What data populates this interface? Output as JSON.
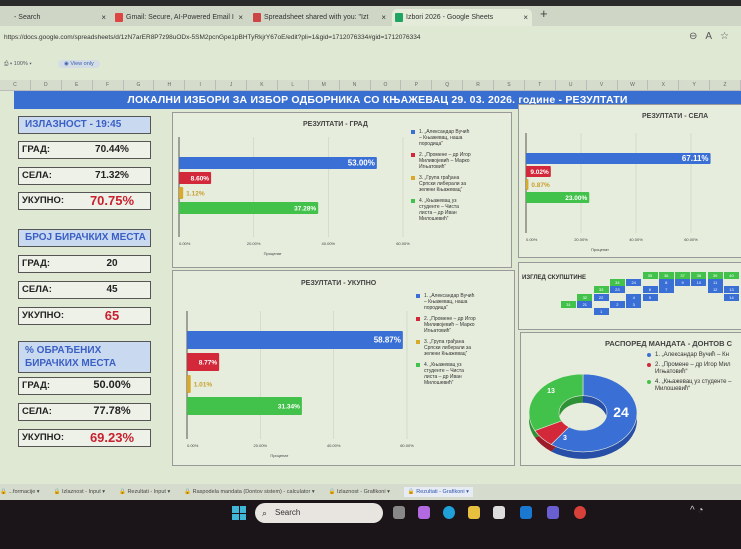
{
  "browser": {
    "tabs": [
      {
        "label": "- Search",
        "active": false
      },
      {
        "label": "Gmail: Secure, AI-Powered Email I",
        "active": false
      },
      {
        "label": "Spreadsheet shared with you: \"Izt",
        "active": false
      },
      {
        "label": "Izbori 2026 - Google Sheets",
        "active": true
      }
    ],
    "close_glyph": "×",
    "new_tab_glyph": "+",
    "url": "https://docs.google.com/spreadsheets/d/1zN7arER8P7z98uODx-5SM2pcnGpe1pBHTyRkjrY67oE/edit?pli=1&gid=1712076334#gid=1712076334",
    "icons": [
      "zoom-icon",
      "read-aloud-icon",
      "favorite-icon"
    ]
  },
  "toolbar": {
    "zoom": "100%",
    "view_only": "View only"
  },
  "columns": [
    "C",
    "D",
    "E",
    "F",
    "G",
    "H",
    "I",
    "J",
    "K",
    "L",
    "M",
    "N",
    "O",
    "P",
    "Q",
    "R",
    "S",
    "T",
    "U",
    "V",
    "W",
    "X",
    "Y",
    "Z"
  ],
  "banner": "ЛОКАЛНИ ИЗБОРИ ЗА ИЗБОР ОДБОРНИКА СО КЊАЖЕВАЦ  29. 03. 2026. године - РЕЗУЛТАТИ",
  "turnout": {
    "header": "ИЗЛАЗНОСТ - 19:45",
    "rows": [
      {
        "label": "ГРАД:",
        "value": "70.44%"
      },
      {
        "label": "СЕЛА:",
        "value": "71.32%"
      },
      {
        "label": "УКУПНО:",
        "value": "70.75%"
      }
    ]
  },
  "polling_stations": {
    "header": "БРОЈ БИРАЧКИХ МЕСТА",
    "rows": [
      {
        "label": "ГРАД:",
        "value": "20"
      },
      {
        "label": "СЕЛА:",
        "value": "45"
      },
      {
        "label": "УКУПНО:",
        "value": "65"
      }
    ]
  },
  "processed": {
    "header_line1": "% ОБРАЂЕНИХ",
    "header_line2": "БИРАЧКИХ МЕСТА",
    "rows": [
      {
        "label": "ГРАД:",
        "value": "50.00%"
      },
      {
        "label": "СЕЛА:",
        "value": "77.78%"
      },
      {
        "label": "УКУПНО:",
        "value": "69.23%"
      }
    ]
  },
  "colors": {
    "blue": "#3a6fd6",
    "red": "#d2283a",
    "yellow": "#d8a92a",
    "green": "#42c24a",
    "total_value": "#c8202e"
  },
  "legend": [
    "1. „Александар Вучић – Књажевац, наша породица“",
    "2. „Промене – др Игор Миливојевић – Марко Игњатовић“",
    "3. „Група грађана Српски либерали за зелени Књажевац“",
    "4. „Књажевац уз студенте – Чиста листа – др Иван Милошевић“"
  ],
  "chart_data": [
    {
      "id": "grad",
      "type": "bar",
      "orientation": "horizontal",
      "title": "РЕЗУЛТАТИ - ГРАД",
      "xlabel": "Проценат",
      "xlim": [
        0,
        60
      ],
      "ticks": [
        "0.00%",
        "20.00%",
        "40.00%",
        "60.00%"
      ],
      "values": [
        53.0,
        8.6,
        1.12,
        37.28
      ],
      "labels": [
        "53.00%",
        "8.60%",
        "1.12%",
        "37.28%"
      ],
      "legend": "right"
    },
    {
      "id": "ukupno",
      "type": "bar",
      "orientation": "horizontal",
      "title": "РЕЗУЛТАТИ - УКУПНО",
      "xlabel": "Проценат",
      "xlim": [
        0,
        60
      ],
      "ticks": [
        "0.00%",
        "20.00%",
        "40.00%",
        "60.00%"
      ],
      "values": [
        58.87,
        8.77,
        1.01,
        31.34
      ],
      "labels": [
        "58.87%",
        "8.77%",
        "1.01%",
        "31.34%"
      ],
      "legend": "right"
    },
    {
      "id": "sela",
      "type": "bar",
      "orientation": "horizontal",
      "title": "РЕЗУЛТАТИ - СЕЛА",
      "xlabel": "Проценат",
      "xlim": [
        0,
        80
      ],
      "ticks": [
        "0.00%",
        "20.00%",
        "40.00%",
        "60.00%"
      ],
      "values": [
        67.11,
        9.02,
        0.87,
        23.0
      ],
      "labels": [
        "67.11%",
        "9.02%",
        "0.87%",
        "23.00%"
      ]
    },
    {
      "id": "mandates",
      "type": "pie",
      "donut": true,
      "title": "РАСПОРЕД МАНДАТА - ДОНТОВ С",
      "values": [
        24,
        3,
        13
      ],
      "labels": [
        "24",
        "3",
        "13"
      ],
      "legend_items": [
        "1. „Александар Вучић – Кн",
        "2. „Промене – др Игор Мил Игњатовић“",
        "4. „Књажевац уз студенте – Милошевић“"
      ],
      "legend": "right"
    }
  ],
  "assembly": {
    "title": "ИЗГЛЕД СКУПШТИНЕ",
    "seats": [
      {
        "n": "35",
        "c": "green",
        "col": 5,
        "row": 0
      },
      {
        "n": "36",
        "c": "green",
        "col": 6,
        "row": 0
      },
      {
        "n": "37",
        "c": "green",
        "col": 7,
        "row": 0
      },
      {
        "n": "38",
        "c": "green",
        "col": 8,
        "row": 0
      },
      {
        "n": "39",
        "c": "green",
        "col": 9,
        "row": 0
      },
      {
        "n": "40",
        "c": "green",
        "col": 10,
        "row": 0
      },
      {
        "n": "34",
        "c": "green",
        "col": 3,
        "row": 1
      },
      {
        "n": "24",
        "c": "blue",
        "col": 4,
        "row": 1
      },
      {
        "n": "8",
        "c": "blue",
        "col": 6,
        "row": 1
      },
      {
        "n": "9",
        "c": "blue",
        "col": 7,
        "row": 1
      },
      {
        "n": "10",
        "c": "blue",
        "col": 8,
        "row": 1
      },
      {
        "n": "11",
        "c": "blue",
        "col": 9,
        "row": 1
      },
      {
        "n": "33",
        "c": "green",
        "col": 2,
        "row": 2
      },
      {
        "n": "23",
        "c": "blue",
        "col": 3,
        "row": 2
      },
      {
        "n": "6",
        "c": "blue",
        "col": 5,
        "row": 2
      },
      {
        "n": "7",
        "c": "blue",
        "col": 6,
        "row": 2
      },
      {
        "n": "12",
        "c": "blue",
        "col": 9,
        "row": 2
      },
      {
        "n": "13",
        "c": "blue",
        "col": 10,
        "row": 2
      },
      {
        "n": "32",
        "c": "green",
        "col": 1,
        "row": 3
      },
      {
        "n": "22",
        "c": "blue",
        "col": 2,
        "row": 3
      },
      {
        "n": "4",
        "c": "blue",
        "col": 4,
        "row": 3
      },
      {
        "n": "5",
        "c": "blue",
        "col": 5,
        "row": 3
      },
      {
        "n": "14",
        "c": "blue",
        "col": 10,
        "row": 3
      },
      {
        "n": "31",
        "c": "green",
        "col": 0,
        "row": 4
      },
      {
        "n": "21",
        "c": "blue",
        "col": 1,
        "row": 4
      },
      {
        "n": "2",
        "c": "blue",
        "col": 3,
        "row": 4
      },
      {
        "n": "3",
        "c": "blue",
        "col": 4,
        "row": 4
      },
      {
        "n": "1",
        "c": "blue",
        "col": 2,
        "row": 5
      }
    ]
  },
  "sheet_tabs": [
    {
      "label": "...formacije",
      "active": false
    },
    {
      "label": "Izlaznost - Input",
      "active": false
    },
    {
      "label": "Rezultati - Input",
      "active": false
    },
    {
      "label": "Raspodela mandata (Dontov sistem) - calculator",
      "active": false
    },
    {
      "label": "Izlaznost - Grafikoni",
      "active": false
    },
    {
      "label": "Rezultati - Grafikoni",
      "active": true
    }
  ],
  "taskbar": {
    "search_placeholder": "Search"
  }
}
